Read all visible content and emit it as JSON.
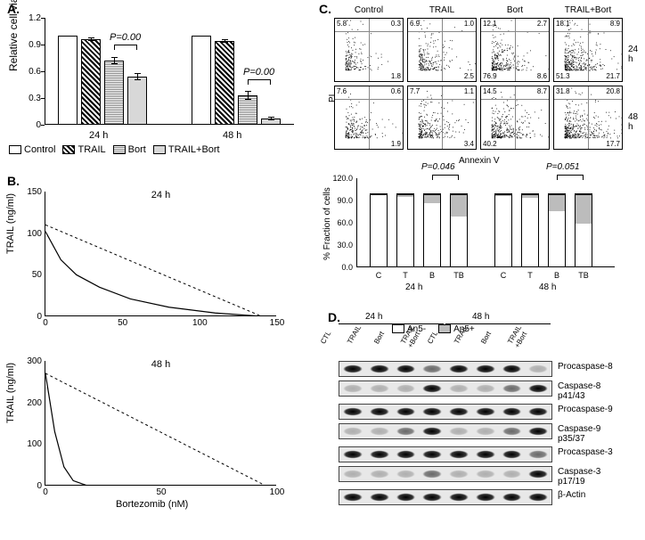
{
  "panelA": {
    "title": "A.",
    "ylabel": "Relative cell viability",
    "ylim": [
      0,
      1.2
    ],
    "yticks": [
      0,
      0.3,
      0.6,
      0.9,
      1.2
    ],
    "categories": [
      "24 h",
      "48 h"
    ],
    "series": [
      "Control",
      "TRAIL",
      "Bort",
      "TRAIL+Bort"
    ],
    "values": {
      "24 h": [
        1.0,
        0.96,
        0.72,
        0.54
      ],
      "48 h": [
        1.0,
        0.94,
        0.33,
        0.07
      ]
    },
    "errors": {
      "24 h": [
        0,
        0.02,
        0.04,
        0.04
      ],
      "48 h": [
        0,
        0.02,
        0.05,
        0.02
      ]
    },
    "pvals": {
      "24 h": "P=0.00",
      "48 h": "P=0.00"
    },
    "bar_colors": [
      "#ffffff",
      "hatch45",
      "hatchH",
      "#d8d8d8"
    ],
    "background": "#ffffff",
    "axis_color": "#000000"
  },
  "panelB": {
    "title": "B.",
    "xlabel": "Bortezomib (nM)",
    "ylabel": "TRAIL (ng/ml)",
    "plots": [
      {
        "time": "24 h",
        "ylim": [
          0,
          150
        ],
        "yticks": [
          0,
          50,
          100,
          150
        ],
        "xlim": [
          0,
          150
        ],
        "xticks": [
          0,
          50,
          100,
          150
        ],
        "additive_line": [
          [
            0,
            110
          ],
          [
            140,
            0
          ]
        ],
        "curve": [
          [
            0,
            102
          ],
          [
            5,
            85
          ],
          [
            10,
            68
          ],
          [
            20,
            50
          ],
          [
            35,
            35
          ],
          [
            55,
            21
          ],
          [
            80,
            11
          ],
          [
            110,
            4
          ],
          [
            140,
            0
          ]
        ]
      },
      {
        "time": "48 h",
        "ylim": [
          0,
          300
        ],
        "yticks": [
          0,
          100,
          200,
          300
        ],
        "xlim": [
          0,
          100
        ],
        "xticks": [
          0,
          50,
          100
        ],
        "additive_line": [
          [
            0,
            270
          ],
          [
            95,
            0
          ]
        ],
        "curve": [
          [
            0,
            270
          ],
          [
            4,
            130
          ],
          [
            8,
            45
          ],
          [
            12,
            12
          ],
          [
            18,
            0
          ],
          [
            30,
            -3
          ],
          [
            50,
            -3
          ],
          [
            70,
            -2
          ],
          [
            95,
            0
          ]
        ]
      }
    ],
    "line_color": "#000000",
    "dash_color": "#000000"
  },
  "panelC": {
    "title": "C.",
    "col_headers": [
      "Control",
      "TRAIL",
      "Bort",
      "TRAIL+Bort"
    ],
    "row_labels": [
      "24 h",
      "48 h"
    ],
    "x_axis": "Annexin V",
    "y_axis": "PI",
    "flow_quadrants": {
      "24 h": [
        {
          "ul": "5.8",
          "ur": "0.3",
          "ll": "",
          "lr": "1.8"
        },
        {
          "ul": "6.9",
          "ur": "1.0",
          "ll": "",
          "lr": "2.5"
        },
        {
          "ul": "12.1",
          "ur": "2.7",
          "ll": "76.9",
          "lr": "8.6"
        },
        {
          "ul": "18.1",
          "ur": "8.9",
          "ll": "51.3",
          "lr": "21.7"
        }
      ],
      "48 h": [
        {
          "ul": "7.6",
          "ur": "0.6",
          "ll": "",
          "lr": "1.9"
        },
        {
          "ul": "7.7",
          "ur": "1.1",
          "ll": "",
          "lr": "3.4"
        },
        {
          "ul": "14.5",
          "ur": "8.7",
          "ll": "40.2",
          "lr": ""
        },
        {
          "ul": "31.8",
          "ur": "20.8",
          "ll": "",
          "lr": "17.7"
        }
      ]
    },
    "bar_chart": {
      "ylabel": "% Fraction of cells",
      "ylim": [
        0,
        120
      ],
      "yticks": [
        0,
        30,
        60,
        90,
        120
      ],
      "ytick_labels": [
        "0.0",
        "30.0",
        "60.0",
        "90.0",
        "120.0"
      ],
      "groups": [
        "24 h",
        "48 h"
      ],
      "conditions": [
        "C",
        "T",
        "B",
        "TB"
      ],
      "an5_minus": {
        "24 h": [
          98,
          96,
          88,
          70
        ],
        "48 h": [
          97,
          95,
          77,
          60
        ]
      },
      "an5_plus": {
        "24 h": [
          2,
          4,
          12,
          30
        ],
        "48 h": [
          3,
          5,
          23,
          40
        ]
      },
      "pvals": {
        "24 h": "P=0.046",
        "48 h": "P=0.051"
      },
      "legend": [
        "An5-",
        "An5+"
      ],
      "colors": {
        "An5-": "#ffffff",
        "An5+": "#bcbcbc"
      }
    }
  },
  "panelD": {
    "title": "D.",
    "groups": [
      "24 h",
      "48 h"
    ],
    "lanes": [
      "CTL",
      "TRAIL",
      "Bort",
      "TRAIL\n+Bort",
      "CTL",
      "TRAIL",
      "Bort",
      "TRAIL\n+Bort"
    ],
    "proteins": [
      {
        "label": "Procaspase-8",
        "bands": [
          "strong",
          "strong",
          "strong",
          "med",
          "strong",
          "strong",
          "strong",
          "faint"
        ]
      },
      {
        "label": "Caspase-8\np41/43",
        "bands": [
          "faint",
          "faint",
          "faint",
          "strong",
          "faint",
          "faint",
          "med",
          "strong"
        ]
      },
      {
        "label": "Procaspase-9",
        "bands": [
          "strong",
          "strong",
          "strong",
          "strong",
          "strong",
          "strong",
          "strong",
          "strong"
        ]
      },
      {
        "label": "Caspase-9\np35/37",
        "bands": [
          "faint",
          "faint",
          "med",
          "strong",
          "faint",
          "faint",
          "med",
          "strong"
        ]
      },
      {
        "label": "Procaspase-3",
        "bands": [
          "strong",
          "strong",
          "strong",
          "strong",
          "strong",
          "strong",
          "strong",
          "med"
        ]
      },
      {
        "label": "Caspase-3\np17/19",
        "bands": [
          "faint",
          "faint",
          "faint",
          "med",
          "faint",
          "faint",
          "faint",
          "strong"
        ]
      },
      {
        "label": "β-Actin",
        "bands": [
          "strong",
          "strong",
          "strong",
          "strong",
          "strong",
          "strong",
          "strong",
          "strong"
        ]
      }
    ]
  }
}
